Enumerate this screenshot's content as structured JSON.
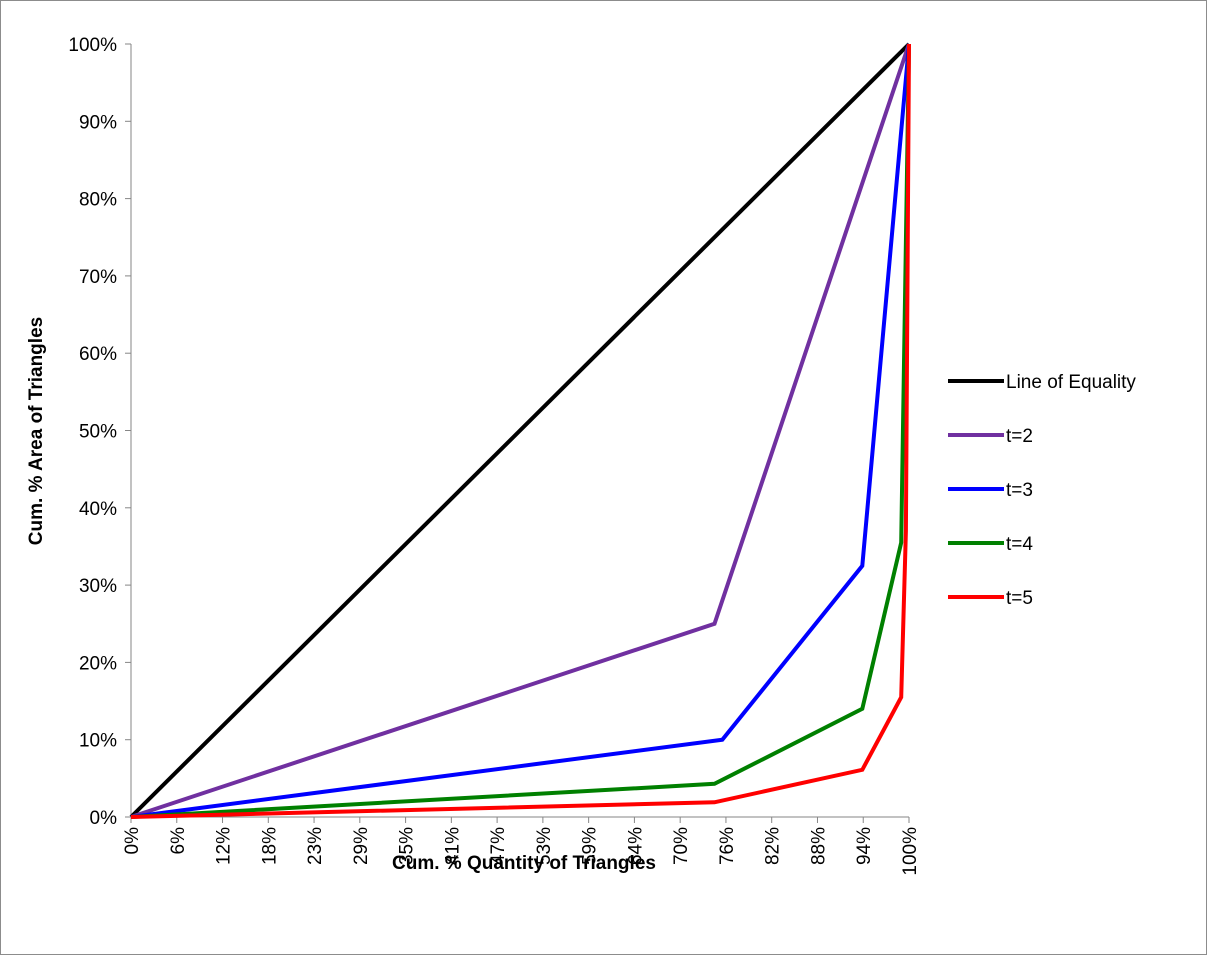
{
  "chart_data": {
    "type": "line",
    "xlabel": "Cum. % Quantity of Triangles",
    "ylabel": "Cum. % Area of Triangles",
    "x_tick_labels": [
      "0%",
      "6%",
      "12%",
      "18%",
      "23%",
      "29%",
      "35%",
      "41%",
      "47%",
      "53%",
      "59%",
      "64%",
      "70%",
      "76%",
      "82%",
      "88%",
      "94%",
      "100%"
    ],
    "y_tick_labels": [
      "0%",
      "10%",
      "20%",
      "30%",
      "40%",
      "50%",
      "60%",
      "70%",
      "80%",
      "90%",
      "100%"
    ],
    "xlim": [
      0,
      100
    ],
    "ylim": [
      0,
      100
    ],
    "legend_position": "right",
    "series": [
      {
        "name": "Line of Equality",
        "color": "#000000",
        "x": [
          0,
          100
        ],
        "y": [
          0,
          100
        ]
      },
      {
        "name": "t=2",
        "color": "#7030a0",
        "x": [
          0,
          75,
          100
        ],
        "y": [
          0,
          25,
          100
        ]
      },
      {
        "name": "t=3",
        "color": "#0000ff",
        "x": [
          0,
          76,
          94,
          100
        ],
        "y": [
          0,
          10,
          32.5,
          100
        ]
      },
      {
        "name": "t=4",
        "color": "#008000",
        "x": [
          0,
          75,
          94,
          99,
          100
        ],
        "y": [
          0,
          4.3,
          14,
          35.5,
          100
        ]
      },
      {
        "name": "t=5",
        "color": "#ff0000",
        "x": [
          0,
          75,
          94,
          99,
          99.6,
          100
        ],
        "y": [
          0,
          1.9,
          6.1,
          15.5,
          37,
          100
        ]
      }
    ]
  }
}
